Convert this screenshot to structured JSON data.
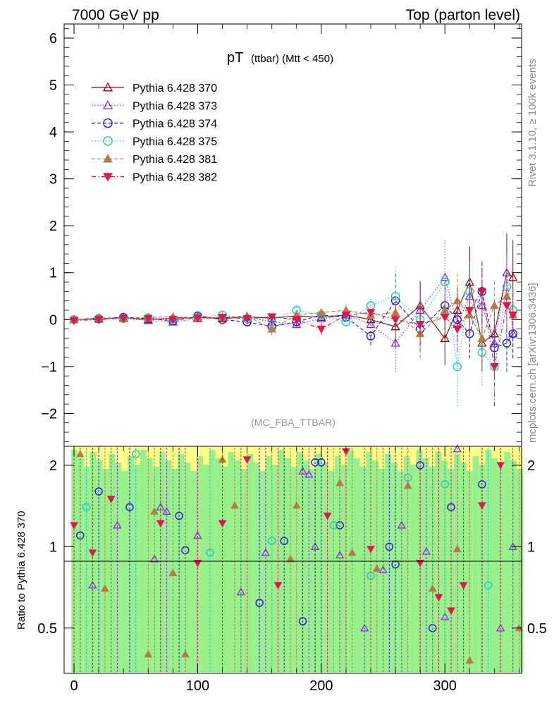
{
  "header": {
    "left": "7000 GeV pp",
    "right": "Top (parton level)"
  },
  "side_labels": {
    "rivet": "Rivet 3.1.10, ≥ 100k events",
    "mcplots": "mcplots.cern.ch [arXiv:1306.3436]"
  },
  "chart_data": [
    {
      "type": "scatter",
      "title_main": "pT",
      "title_sub": "(ttbar) (Mtt < 450)",
      "analysis": "(MC_FBA_TTBAR)",
      "xlim": [
        -8,
        362
      ],
      "ylim": [
        -2.7,
        6.3
      ],
      "yticks": [
        -2,
        -1,
        0,
        1,
        2,
        3,
        4,
        5,
        6
      ],
      "yticklabels": [
        "−2",
        "−1",
        "0",
        "1",
        "2",
        "3",
        "4",
        "5",
        "6"
      ],
      "legend_position": "top-left",
      "series": [
        {
          "name": "Pythia 6.428 370",
          "color": "#8b0a0a",
          "marker": "triangle-open",
          "line": "solid",
          "x": [
            0,
            20,
            40,
            60,
            80,
            100,
            120,
            140,
            160,
            180,
            200,
            220,
            240,
            260,
            280,
            300,
            310,
            320,
            330,
            340,
            350,
            355
          ],
          "y": [
            0.0,
            0.02,
            0.04,
            0.0,
            0.03,
            0.05,
            0.02,
            0.06,
            0.03,
            0.08,
            0.05,
            0.1,
            0.0,
            -0.15,
            0.3,
            -0.4,
            0.2,
            0.8,
            -0.5,
            -0.3,
            1.0,
            0.9
          ]
        },
        {
          "name": "Pythia 6.428 373",
          "color": "#8a2be2",
          "marker": "triangle-open",
          "line": "dotted",
          "x": [
            0,
            20,
            40,
            60,
            80,
            100,
            120,
            140,
            160,
            180,
            200,
            220,
            240,
            260,
            280,
            300,
            310,
            320,
            330,
            340,
            350,
            355
          ],
          "y": [
            0.0,
            0.01,
            0.03,
            -0.02,
            -0.05,
            0.02,
            0.04,
            0.05,
            -0.05,
            -0.1,
            0.02,
            0.1,
            -0.1,
            -0.5,
            0.2,
            0.9,
            -0.1,
            0.5,
            0.3,
            -0.5,
            1.0,
            -0.3
          ]
        },
        {
          "name": "Pythia 6.428 374",
          "color": "#1c1ccc",
          "marker": "circle-open",
          "line": "dashed",
          "x": [
            0,
            20,
            40,
            60,
            80,
            100,
            120,
            140,
            160,
            180,
            200,
            220,
            240,
            260,
            280,
            300,
            310,
            320,
            330,
            340,
            350,
            355
          ],
          "y": [
            0.0,
            0.02,
            0.05,
            0.03,
            -0.03,
            0.08,
            0.0,
            -0.05,
            -0.15,
            -0.05,
            0.1,
            0.05,
            -0.35,
            0.4,
            -0.2,
            0.3,
            0.0,
            -0.3,
            0.6,
            -0.6,
            -0.5,
            -0.3
          ]
        },
        {
          "name": "Pythia 6.428 375",
          "color": "#20c8c0",
          "marker": "circle-open",
          "line": "dotted",
          "x": [
            0,
            20,
            40,
            60,
            80,
            100,
            120,
            140,
            160,
            180,
            200,
            220,
            240,
            260,
            280,
            300,
            310,
            320,
            330,
            340,
            350,
            355
          ],
          "y": [
            0.0,
            0.03,
            0.02,
            0.04,
            0.01,
            0.06,
            0.1,
            0.02,
            0.0,
            0.2,
            0.1,
            -0.05,
            0.3,
            0.5,
            0.0,
            0.8,
            -1.0,
            0.6,
            -0.7,
            -1.0,
            0.7,
            0.2
          ]
        },
        {
          "name": "Pythia 6.428 381",
          "color": "#b07d48",
          "marker": "triangle-filled",
          "line": "dashed",
          "x": [
            0,
            20,
            40,
            60,
            80,
            100,
            120,
            140,
            160,
            180,
            200,
            220,
            240,
            260,
            280,
            300,
            310,
            320,
            330,
            340,
            350,
            355
          ],
          "y": [
            0.0,
            0.04,
            0.02,
            0.05,
            0.06,
            0.03,
            0.05,
            0.08,
            -0.2,
            0.1,
            0.15,
            0.2,
            0.1,
            0.15,
            -0.3,
            0.2,
            0.4,
            0.1,
            -0.4,
            0.3,
            0.5,
            0.1
          ]
        },
        {
          "name": "Pythia 6.428 382",
          "color": "#e0174a",
          "marker": "triangle-down-filled",
          "line": "dashdot",
          "x": [
            0,
            20,
            40,
            60,
            80,
            100,
            120,
            140,
            160,
            180,
            200,
            220,
            240,
            260,
            280,
            300,
            310,
            320,
            330,
            340,
            350,
            355
          ],
          "y": [
            -0.02,
            0.0,
            0.03,
            0.02,
            0.0,
            0.04,
            0.05,
            0.02,
            0.06,
            0.0,
            -0.2,
            0.1,
            0.15,
            0.0,
            -0.1,
            0.05,
            -0.2,
            0.2,
            0.6,
            -1.0,
            0.3,
            0.1
          ]
        }
      ]
    },
    {
      "type": "scatter",
      "ylabel": "Ratio to Pythia 6.428 370",
      "xlim": [
        -8,
        362
      ],
      "ylim": [
        0.34,
        2.35
      ],
      "yticks": [
        0.5,
        1,
        2
      ],
      "yticklabels": [
        "0.5",
        "1",
        "2"
      ],
      "xticks": [
        0,
        100,
        200,
        300
      ],
      "xticklabels": [
        "0",
        "100",
        "200",
        "300"
      ],
      "reference_line": 1,
      "series": [
        {
          "name": "Pythia 6.428 373",
          "color": "#8a2be2",
          "marker": "triangle-open",
          "x": [
            15,
            35,
            65,
            70,
            75,
            100,
            135,
            155,
            185,
            190,
            195,
            215,
            235,
            250,
            265,
            285,
            300,
            310,
            345,
            355
          ],
          "y": [
            0.72,
            1.2,
            0.9,
            1.4,
            1.35,
            1.1,
            0.68,
            0.95,
            1.9,
            1.85,
            1.0,
            0.93,
            0.5,
            0.82,
            1.2,
            0.96,
            0.55,
            2.3,
            0.5,
            1.0
          ]
        },
        {
          "name": "Pythia 6.428 374",
          "color": "#1c1ccc",
          "marker": "circle-open",
          "x": [
            5,
            20,
            45,
            85,
            90,
            150,
            170,
            185,
            195,
            200,
            215,
            255,
            260,
            280,
            290,
            305,
            330
          ],
          "y": [
            1.1,
            1.6,
            1.4,
            1.3,
            0.97,
            0.62,
            1.05,
            0.53,
            2.05,
            2.05,
            1.2,
            1.0,
            0.86,
            2.0,
            0.5,
            1.4,
            1.7
          ]
        },
        {
          "name": "Pythia 6.428 375",
          "color": "#20c8c0",
          "marker": "circle-open",
          "x": [
            10,
            50,
            110,
            160,
            210,
            240,
            270,
            300,
            335
          ],
          "y": [
            1.4,
            2.2,
            0.95,
            1.05,
            1.2,
            0.78,
            1.8,
            1.7,
            0.72
          ]
        },
        {
          "name": "Pythia 6.428 381",
          "color": "#b07d48",
          "marker": "triangle-filled",
          "x": [
            5,
            25,
            60,
            65,
            80,
            90,
            120,
            130,
            175,
            180,
            215,
            225,
            245,
            270,
            290,
            310,
            320,
            360
          ],
          "y": [
            2.2,
            0.7,
            0.4,
            1.35,
            0.8,
            0.4,
            2.1,
            1.42,
            0.9,
            1.42,
            1.72,
            0.95,
            0.83,
            1.68,
            0.7,
            0.98,
            0.38,
            0.5
          ]
        },
        {
          "name": "Pythia 6.428 382",
          "color": "#e0174a",
          "marker": "triangle-down-filled",
          "x": [
            0,
            15,
            30,
            70,
            100,
            120,
            140,
            165,
            205,
            220,
            240,
            280,
            295,
            305,
            315,
            330,
            345
          ],
          "y": [
            1.2,
            0.95,
            1.5,
            1.22,
            0.87,
            1.22,
            2.1,
            0.72,
            1.3,
            2.25,
            0.98,
            0.87,
            0.65,
            0.58,
            0.72,
            1.42,
            2.0
          ]
        }
      ]
    }
  ]
}
